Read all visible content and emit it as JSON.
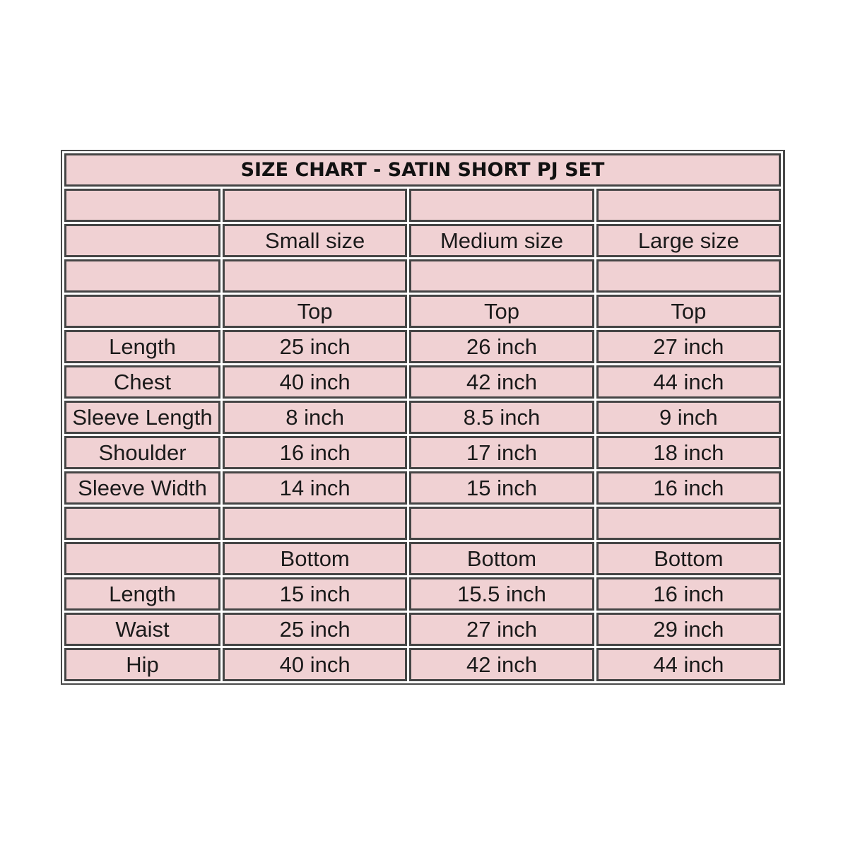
{
  "title": "SIZE CHART - SATIN SHORT PJ SET",
  "sizes": [
    "Small size",
    "Medium size",
    "Large size"
  ],
  "sections": [
    {
      "label": "Top",
      "rows": [
        {
          "name": "Length",
          "values": [
            "25 inch",
            "26 inch",
            "27 inch"
          ]
        },
        {
          "name": "Chest",
          "values": [
            "40 inch",
            "42 inch",
            "44 inch"
          ]
        },
        {
          "name": "Sleeve Length",
          "values": [
            "8 inch",
            "8.5 inch",
            "9 inch"
          ]
        },
        {
          "name": "Shoulder",
          "values": [
            "16 inch",
            "17 inch",
            "18 inch"
          ]
        },
        {
          "name": "Sleeve Width",
          "values": [
            "14 inch",
            "15 inch",
            "16 inch"
          ]
        }
      ]
    },
    {
      "label": "Bottom",
      "rows": [
        {
          "name": "Length",
          "values": [
            "15 inch",
            "15.5 inch",
            "16 inch"
          ]
        },
        {
          "name": "Waist",
          "values": [
            "25 inch",
            "27 inch",
            "29 inch"
          ]
        },
        {
          "name": "Hip",
          "values": [
            "40 inch",
            "42 inch",
            "44 inch"
          ]
        }
      ]
    }
  ],
  "colors": {
    "cell_background": "#f0d1d3",
    "border": "#454545"
  }
}
